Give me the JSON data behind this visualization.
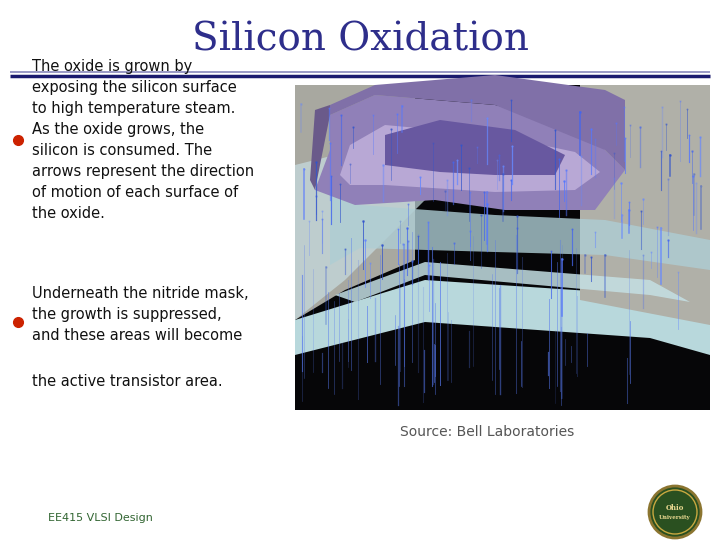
{
  "title": "Silicon Oxidation",
  "title_color": "#2E2E8B",
  "title_fontsize": 28,
  "bg_color": "#FFFFFF",
  "line1_color": "#8888BB",
  "line2_color": "#1A1A6E",
  "bullet_color": "#CC2200",
  "bullet1_text": "The oxide is grown by\nexposing the silicon surface\nto high temperature steam.\nAs the oxide grows, the\nsilicon is consumed. The\narrows represent the direction\nof motion of each surface of\nthe oxide.",
  "bullet2_text": "Underneath the nitride mask,\nthe growth is suppressed,\nand these areas will become",
  "bullet3_text": "the active transistor area.",
  "source_text": "Source: Bell Laboratories",
  "footer_text": "EE415 VLSI Design",
  "footer_color": "#336633",
  "text_fontsize": 10.5,
  "source_fontsize": 10,
  "footer_fontsize": 8
}
